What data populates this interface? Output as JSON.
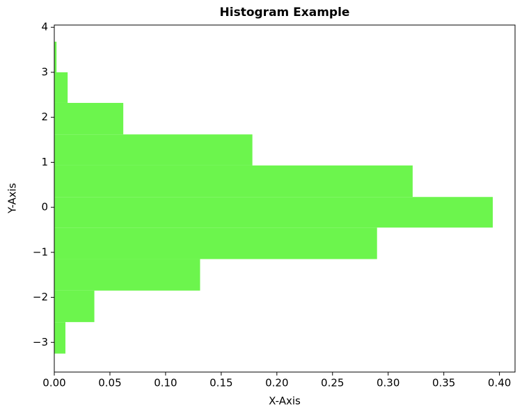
{
  "chart_data": {
    "type": "histogram",
    "orientation": "horizontal",
    "title": "Histogram Example",
    "x_label": "X-Axis",
    "y_label": "Y-Axis",
    "bins": [
      -3.25,
      -2.55,
      -1.85,
      -1.15,
      -0.45,
      0.23,
      0.93,
      1.62,
      2.32,
      3.0,
      3.68
    ],
    "values": [
      0.01,
      0.036,
      0.131,
      0.29,
      0.394,
      0.322,
      0.178,
      0.062,
      0.012,
      0.002
    ],
    "color": "#6cf54d",
    "xlim": [
      0,
      0.414
    ],
    "ylim": [
      -3.66,
      4.05
    ],
    "xticks": [
      {
        "value": 0,
        "label": "0.00"
      },
      {
        "value": 0.05,
        "label": "0.05"
      },
      {
        "value": 0.1,
        "label": "0.10"
      },
      {
        "value": 0.15,
        "label": "0.15"
      },
      {
        "value": 0.2,
        "label": "0.20"
      },
      {
        "value": 0.25,
        "label": "0.25"
      },
      {
        "value": 0.3,
        "label": "0.30"
      },
      {
        "value": 0.35,
        "label": "0.35"
      },
      {
        "value": 0.4,
        "label": "0.40"
      }
    ],
    "yticks": [
      {
        "value": -3,
        "label": "−3"
      },
      {
        "value": -2,
        "label": "−2"
      },
      {
        "value": -1,
        "label": "−1"
      },
      0,
      1,
      2,
      3,
      4
    ],
    "grid": false
  }
}
